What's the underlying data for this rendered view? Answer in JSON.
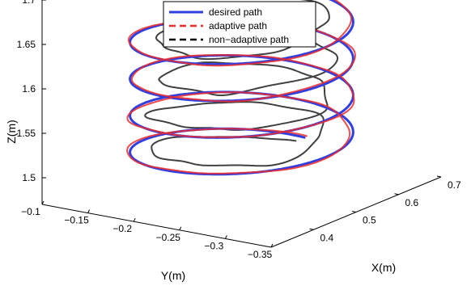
{
  "chart_data": {
    "type": "line3d",
    "xlabel": "X(m)",
    "ylabel": "Y(m)",
    "zlabel": "Z(m)",
    "xlim": [
      0.3,
      0.7
    ],
    "ylim": [
      -0.1,
      -0.35
    ],
    "zlim": [
      1.47,
      1.7
    ],
    "x_ticks": [
      "0.4",
      "0.5",
      "0.6",
      "0.7"
    ],
    "y_ticks": [
      "−0.1",
      "−0.15",
      "−0.2",
      "−0.25",
      "−0.3",
      "−0.35"
    ],
    "z_ticks": [
      "1.5",
      "1.55",
      "1.6",
      "1.65",
      "1.7"
    ],
    "helix": {
      "turns": 4,
      "z_start": 1.5,
      "z_end": 1.665,
      "radius_x": 0.15,
      "radius_y": 0.1,
      "center_x": 0.5,
      "center_y": -0.225
    },
    "legend_position": "top-center",
    "series": [
      {
        "name": "desired path",
        "color": "#2f3fe0",
        "style": "solid"
      },
      {
        "name": "adaptive path",
        "color": "#ee2a2a",
        "style": "dashed"
      },
      {
        "name": "non−adaptive path",
        "color": "#000000",
        "style": "dashed"
      }
    ]
  }
}
